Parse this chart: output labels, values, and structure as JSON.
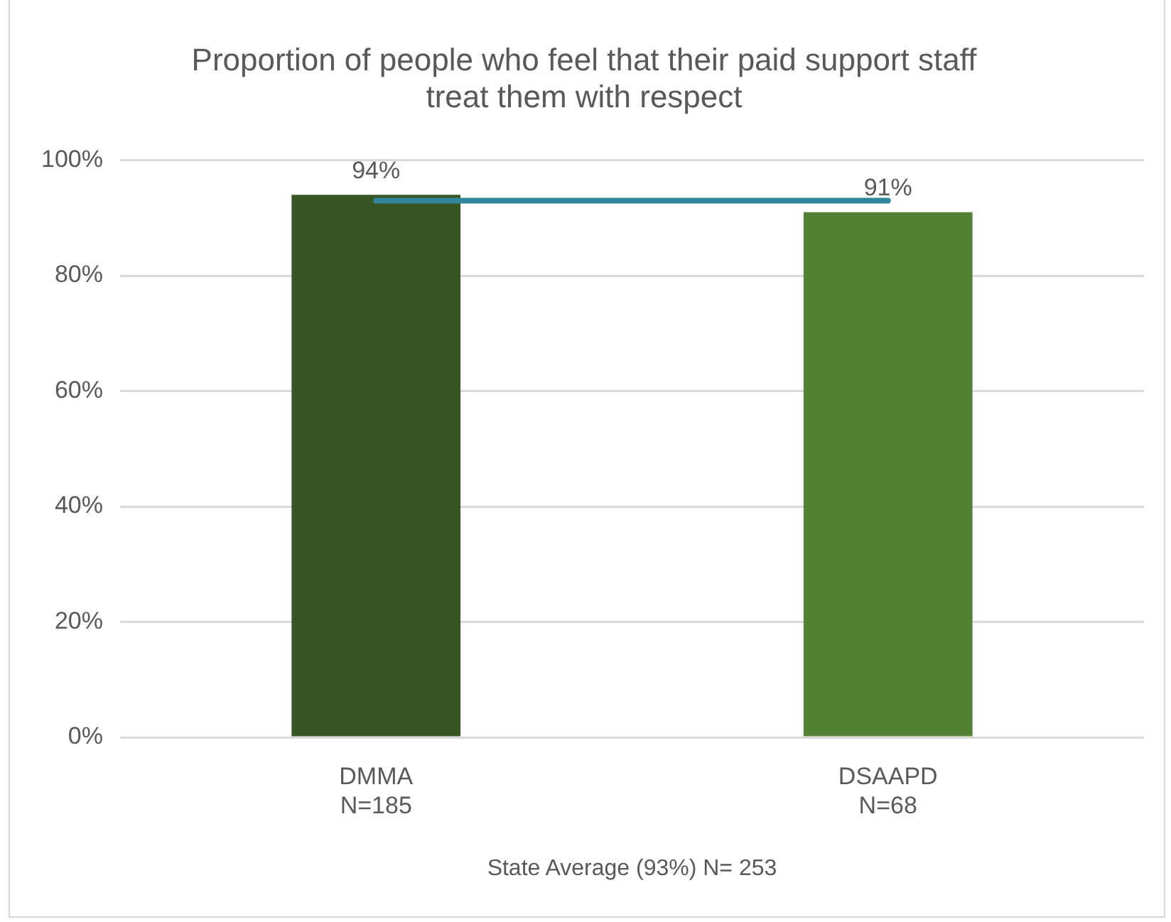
{
  "chart_data": {
    "type": "bar",
    "title": "Proportion of people who feel that their paid support staff\ntreat them with respect",
    "xlabel": "State Average (93%) N= 253",
    "categories": [
      "DMMA\nN=185",
      "DSAAPD\nN=68"
    ],
    "values": [
      94,
      91
    ],
    "colors": [
      "#375623",
      "#548235"
    ],
    "ylim": [
      0,
      100
    ],
    "yticks": [
      {
        "value": 0,
        "label": "0%"
      },
      {
        "value": 20,
        "label": "20%"
      },
      {
        "value": 40,
        "label": "40%"
      },
      {
        "value": 60,
        "label": "60%"
      },
      {
        "value": 80,
        "label": "80%"
      },
      {
        "value": 100,
        "label": "100%"
      }
    ],
    "value_labels": [
      "94%",
      "91%"
    ],
    "ref_lines": [
      {
        "axis": "y",
        "value": 93,
        "color": "#31859c"
      }
    ],
    "grid": "y",
    "legend": false
  }
}
